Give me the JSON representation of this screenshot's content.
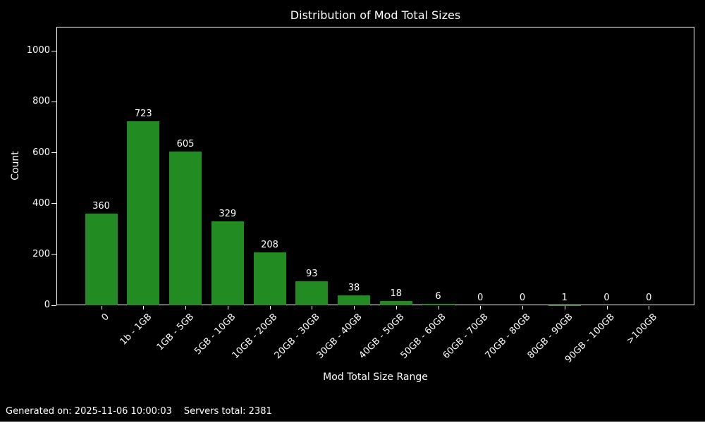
{
  "chart_data": {
    "type": "bar",
    "title": "Distribution of Mod Total Sizes",
    "xlabel": "Mod Total Size Range",
    "ylabel": "Count",
    "categories": [
      "0",
      "1b - 1GB",
      "1GB - 5GB",
      "5GB - 10GB",
      "10GB - 20GB",
      "20GB - 30GB",
      "30GB - 40GB",
      "40GB - 50GB",
      "50GB - 60GB",
      "60GB - 70GB",
      "70GB - 80GB",
      "80GB - 90GB",
      "90GB - 100GB",
      ">100GB"
    ],
    "values": [
      360,
      723,
      605,
      329,
      208,
      93,
      38,
      18,
      6,
      0,
      0,
      1,
      0,
      0
    ],
    "value_labels_shown": true,
    "yticks": [
      0,
      200,
      400,
      600,
      800,
      1000
    ],
    "ylim": [
      0,
      1095
    ],
    "xtick_rotation_deg": 45,
    "grid": false,
    "legend": "none",
    "bar_color": "#228B22",
    "background_color": "#000000",
    "text_color": "#ffffff",
    "spine_color": "#ffffff"
  },
  "footer": {
    "generated": "Generated on: 2025-11-06 10:00:03",
    "servers_total": "Servers total: 2381"
  }
}
